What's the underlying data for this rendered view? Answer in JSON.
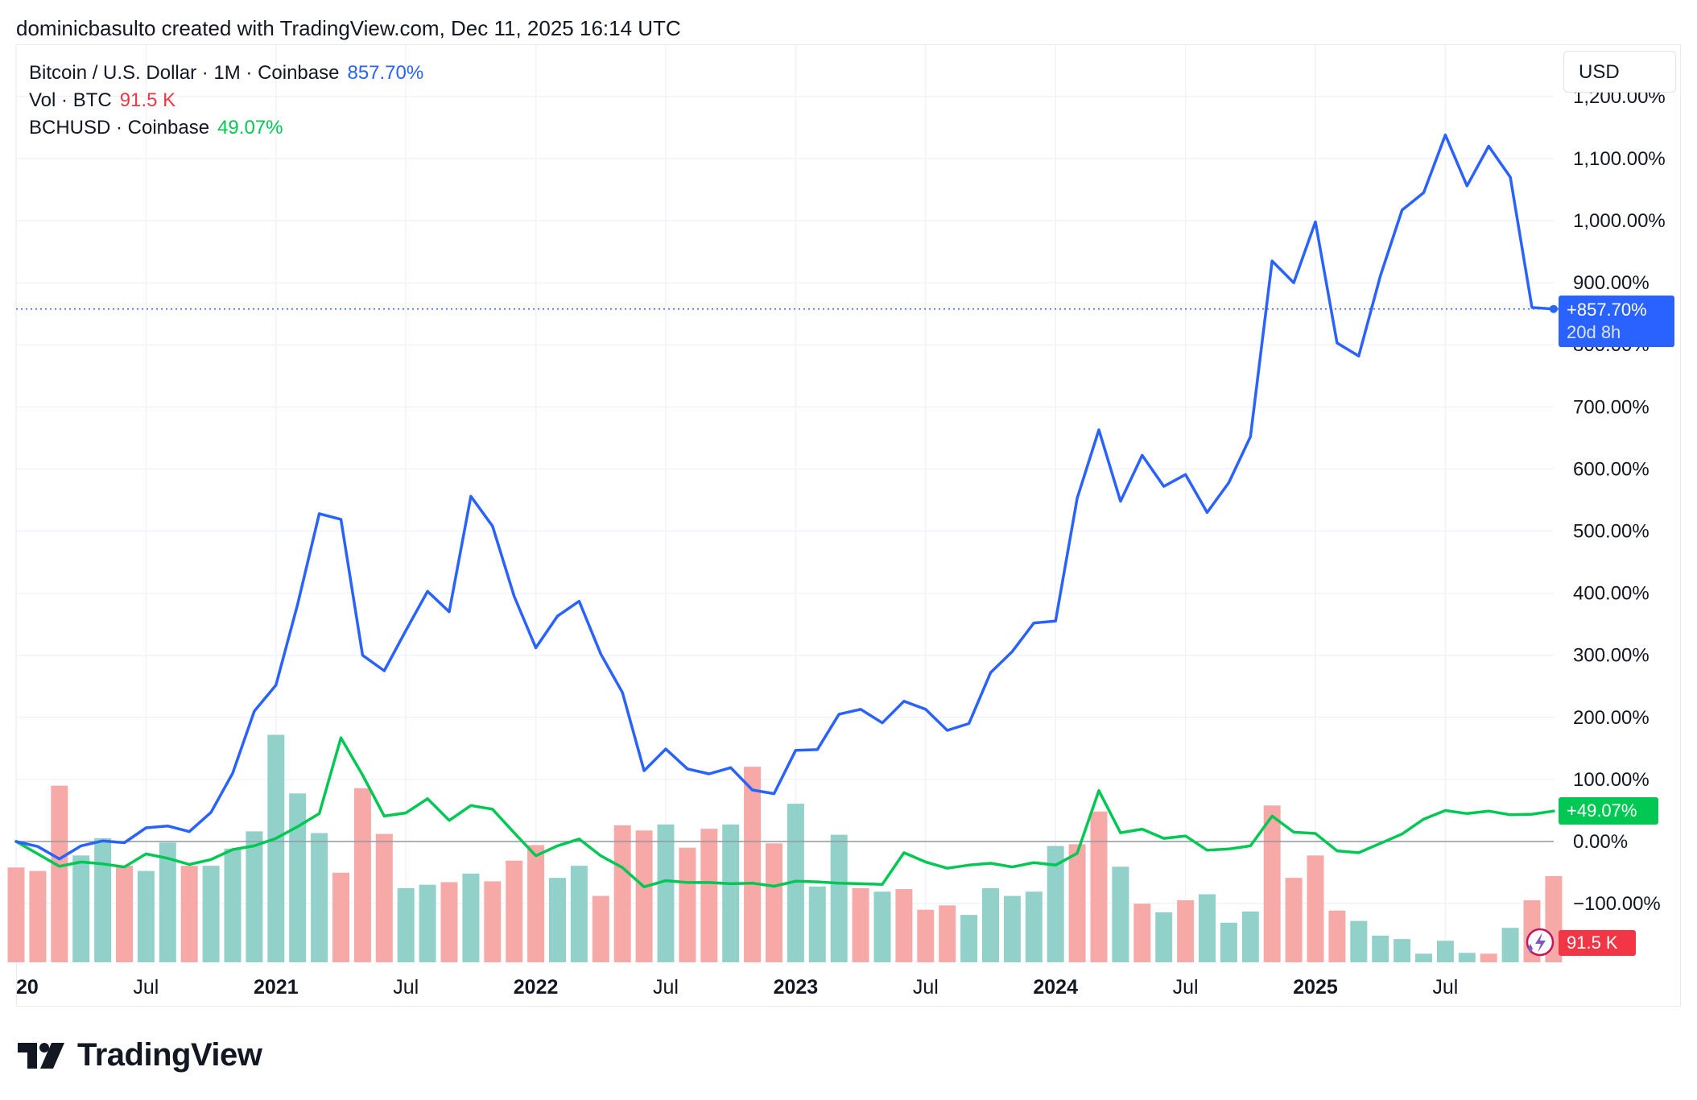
{
  "header": {
    "credit": "dominicbasulto created with TradingView.com, Dec 11, 2025 16:14 UTC"
  },
  "legend": {
    "btc": {
      "label": "Bitcoin / U.S. Dollar · 1M · Coinbase",
      "value": "857.70%",
      "color": "#2962ff"
    },
    "vol": {
      "label": "Vol · BTC",
      "value": "91.5 K",
      "color": "#f23645"
    },
    "bch": {
      "label": "BCHUSD · Coinbase",
      "value": "49.07%",
      "color": "#00c853"
    }
  },
  "currency_button": {
    "label": "USD"
  },
  "badges": {
    "btc_value": "+857.70%",
    "btc_countdown": "20d 8h",
    "bch_value": "+49.07%",
    "vol_value": "91.5 K"
  },
  "footer": {
    "brand": "TradingView",
    "logo_icon": "tradingview-logo-icon"
  },
  "chart_data": {
    "type": "line",
    "title": "",
    "xlabel": "",
    "ylabel": "",
    "y_unit": "%",
    "ylim": [
      -120,
      1200
    ],
    "y_ticks": [
      -100,
      0,
      100,
      200,
      300,
      400,
      500,
      600,
      700,
      800,
      900,
      1000,
      1100,
      1200
    ],
    "y_tick_labels": [
      "−100.00%",
      "0.00%",
      "100.00%",
      "200.00%",
      "300.00%",
      "400.00%",
      "500.00%",
      "600.00%",
      "700.00%",
      "800.00%",
      "900.00%",
      "1,000.00%",
      "1,100.00%",
      "1,200.00%"
    ],
    "x_tick_labels": [
      {
        "label": "20",
        "month": 0,
        "bold": true
      },
      {
        "label": "Jul",
        "month": 6,
        "bold": false
      },
      {
        "label": "2021",
        "month": 12,
        "bold": true
      },
      {
        "label": "Jul",
        "month": 18,
        "bold": false
      },
      {
        "label": "2022",
        "month": 24,
        "bold": true
      },
      {
        "label": "Jul",
        "month": 30,
        "bold": false
      },
      {
        "label": "2023",
        "month": 36,
        "bold": true
      },
      {
        "label": "Jul",
        "month": 42,
        "bold": false
      },
      {
        "label": "2024",
        "month": 48,
        "bold": true
      },
      {
        "label": "Jul",
        "month": 54,
        "bold": false
      },
      {
        "label": "2025",
        "month": 60,
        "bold": true
      },
      {
        "label": "Jul",
        "month": 66,
        "bold": false
      }
    ],
    "grid": true,
    "series": [
      {
        "key": "btc",
        "color": "#2962ff",
        "values": [
          0,
          -8,
          -28,
          -7,
          1,
          -2,
          22,
          25,
          16,
          47,
          110,
          210,
          252,
          382,
          528,
          519,
          300,
          275,
          340,
          403,
          370,
          556,
          508,
          395,
          312,
          363,
          387,
          302,
          240,
          114,
          149,
          117,
          109,
          119,
          83,
          77,
          147,
          148,
          205,
          213,
          191,
          226,
          213,
          179,
          190,
          272,
          306,
          352,
          355,
          553,
          663,
          548,
          622,
          572,
          591,
          530,
          578,
          652,
          935,
          900,
          998,
          803,
          782,
          911,
          1017,
          1045,
          1138,
          1056,
          1120,
          1070,
          860,
          857.7
        ]
      },
      {
        "key": "bch",
        "color": "#00c853",
        "values": [
          0,
          -20,
          -40,
          -33,
          -36,
          -41,
          -20,
          -27,
          -37,
          -29,
          -13,
          -7,
          5,
          24,
          45,
          167,
          107,
          41,
          46,
          69,
          34,
          58,
          52,
          14,
          -23,
          -7,
          4,
          -23,
          -42,
          -73,
          -63,
          -66,
          -66,
          -68,
          -67,
          -72,
          -64,
          -65,
          -67,
          -68,
          -69,
          -18,
          -33,
          -43,
          -38,
          -35,
          -41,
          -34,
          -38,
          -19,
          82,
          14,
          20,
          5,
          9,
          -14,
          -12,
          -7,
          41,
          15,
          13,
          -15,
          -18,
          -3,
          12,
          36,
          50,
          45,
          49,
          43,
          44,
          49.07
        ]
      }
    ],
    "volume": {
      "unit": "BTC",
      "up_color": "#92d1c9",
      "down_color": "#f7a9a7",
      "last_value": "91.5 K",
      "values": [
        1.1,
        1.06,
        2.05,
        1.24,
        1.44,
        1.12,
        1.06,
        1.39,
        1.12,
        1.12,
        1.32,
        1.52,
        2.64,
        1.96,
        1.5,
        1.04,
        2.02,
        1.49,
        0.86,
        0.9,
        0.93,
        1.03,
        0.94,
        1.18,
        1.36,
        0.98,
        1.12,
        0.77,
        1.59,
        1.53,
        1.6,
        1.33,
        1.55,
        1.6,
        2.27,
        1.38,
        1.84,
        0.88,
        1.48,
        0.86,
        0.82,
        0.85,
        0.61,
        0.66,
        0.55,
        0.86,
        0.77,
        0.82,
        1.35,
        1.37,
        1.75,
        1.11,
        0.68,
        0.58,
        0.72,
        0.79,
        0.46,
        0.59,
        1.82,
        0.98,
        1.24,
        0.6,
        0.48,
        0.31,
        0.27,
        0.1,
        0.25,
        0.11,
        0.1,
        0.4,
        0.72,
        1.0
      ],
      "directions": [
        "down",
        "down",
        "down",
        "up",
        "up",
        "down",
        "up",
        "up",
        "down",
        "up",
        "up",
        "up",
        "up",
        "up",
        "up",
        "down",
        "down",
        "down",
        "up",
        "up",
        "down",
        "up",
        "down",
        "down",
        "down",
        "up",
        "up",
        "down",
        "down",
        "down",
        "up",
        "down",
        "down",
        "up",
        "down",
        "down",
        "up",
        "up",
        "up",
        "down",
        "up",
        "down",
        "down",
        "down",
        "up",
        "up",
        "up",
        "up",
        "up",
        "down",
        "down",
        "up",
        "down",
        "up",
        "down",
        "up",
        "up",
        "up",
        "down",
        "down",
        "down",
        "down",
        "up",
        "up",
        "up",
        "up",
        "up",
        "up",
        "down",
        "up",
        "down",
        "down"
      ]
    }
  }
}
